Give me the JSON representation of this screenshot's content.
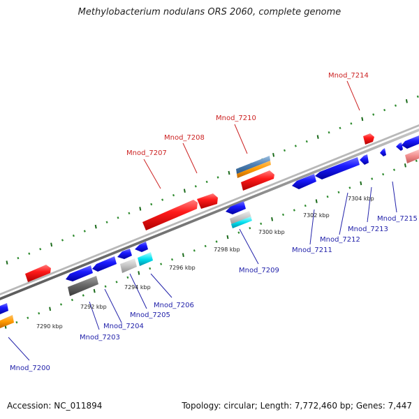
{
  "title": "Methylobacterium nodulans ORS 2060, complete genome",
  "footer": {
    "accession": "Accession: NC_011894",
    "summary": "Topology: circular; Length: 7,772,460 bp; Genes: 7,447"
  },
  "colors": {
    "backbone": "#8a8a8a",
    "tick_major": "#1b6b1b",
    "tick_minor": "#2e8b2e",
    "label_forward": "#cc2222",
    "label_reverse": "#2222aa",
    "kbp_text": "#222222"
  },
  "kbp_labels": [
    "7290 kbp",
    "7292 kbp",
    "7294 kbp",
    "7296 kbp",
    "7298 kbp",
    "7300 kbp",
    "7302 kbp",
    "7304 kbp"
  ],
  "gene_labels": [
    {
      "text": "Mnod_7207",
      "strand": "forward"
    },
    {
      "text": "Mnod_7208",
      "strand": "forward"
    },
    {
      "text": "Mnod_7210",
      "strand": "forward"
    },
    {
      "text": "Mnod_7214",
      "strand": "forward"
    },
    {
      "text": "Mnod_7200",
      "strand": "reverse"
    },
    {
      "text": "Mnod_7203",
      "strand": "reverse"
    },
    {
      "text": "Mnod_7204",
      "strand": "reverse"
    },
    {
      "text": "Mnod_7205",
      "strand": "reverse"
    },
    {
      "text": "Mnod_7206",
      "strand": "reverse"
    },
    {
      "text": "Mnod_7209",
      "strand": "reverse"
    },
    {
      "text": "Mnod_7211",
      "strand": "reverse"
    },
    {
      "text": "Mnod_7212",
      "strand": "reverse"
    },
    {
      "text": "Mnod_7213",
      "strand": "reverse"
    },
    {
      "text": "Mnod_7215",
      "strand": "reverse"
    }
  ]
}
